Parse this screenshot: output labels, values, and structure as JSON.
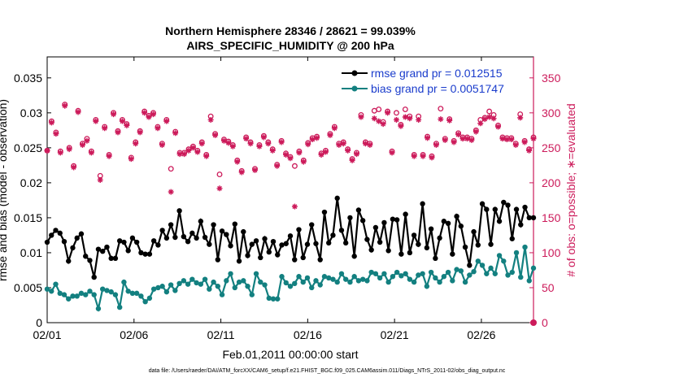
{
  "chart_data": {
    "type": "line",
    "title_line1": "Northern Hemisphere 28346 / 28621 = 99.039%",
    "title_line2": "AIRS_SPECIFIC_HUMIDITY @ 200 hPa",
    "xlabel": "Feb.01,2011 00:00:00 start",
    "ylabel_left": "rmse and bias (model - observation)",
    "ylabel_right": "# of obs: o=possible; ∗=evaluated",
    "x_ticks": [
      "02/01",
      "02/06",
      "02/11",
      "02/16",
      "02/21",
      "02/26"
    ],
    "x_tick_days": [
      0,
      5,
      10,
      15,
      20,
      25
    ],
    "xlim": [
      0,
      28
    ],
    "ylim_left": [
      0,
      0.038
    ],
    "y_ticks_left": [
      "0",
      "0.005",
      "0.01",
      "0.015",
      "0.02",
      "0.025",
      "0.03",
      "0.035"
    ],
    "y_ticks_left_values": [
      0,
      0.005,
      0.01,
      0.015,
      0.02,
      0.025,
      0.03,
      0.035
    ],
    "ylim_right": [
      0,
      380
    ],
    "y_ticks_right": [
      "0",
      "50",
      "100",
      "150",
      "200",
      "250",
      "300",
      "350"
    ],
    "y_ticks_right_values": [
      0,
      50,
      100,
      150,
      200,
      250,
      300,
      350
    ],
    "colors": {
      "rmse": "#000000",
      "bias": "#138080",
      "obs": "#cc1a5a",
      "legend_text": "#1a3ccc"
    },
    "series": [
      {
        "name": "rmse grand pr = 0.012515",
        "values": [
          0.0115,
          0.0125,
          0.0132,
          0.0128,
          0.0116,
          0.0088,
          0.0107,
          0.0121,
          0.0127,
          0.0095,
          0.0089,
          0.0065,
          0.0105,
          0.0102,
          0.0108,
          0.0092,
          0.0092,
          0.0117,
          0.0115,
          0.0103,
          0.0121,
          0.0115,
          0.01,
          0.0098,
          0.0098,
          0.0117,
          0.0111,
          0.0132,
          0.0121,
          0.014,
          0.0122,
          0.016,
          0.0123,
          0.0116,
          0.0128,
          0.0121,
          0.0145,
          0.0122,
          0.0112,
          0.014,
          0.009,
          0.0131,
          0.0126,
          0.011,
          0.0141,
          0.0088,
          0.013,
          0.0096,
          0.0112,
          0.0117,
          0.0093,
          0.012,
          0.0101,
          0.0116,
          0.0097,
          0.0111,
          0.0113,
          0.0124,
          0.009,
          0.0133,
          0.0093,
          0.0112,
          0.014,
          0.0113,
          0.009,
          0.0158,
          0.0114,
          0.0125,
          0.0178,
          0.0132,
          0.0114,
          0.015,
          0.0095,
          0.0161,
          0.0146,
          0.0119,
          0.0104,
          0.0136,
          0.0115,
          0.0143,
          0.0103,
          0.0148,
          0.0147,
          0.0098,
          0.0155,
          0.01,
          0.0125,
          0.0112,
          0.017,
          0.0107,
          0.0134,
          0.0092,
          0.0121,
          0.0145,
          0.0142,
          0.0098,
          0.0152,
          0.0138,
          0.0108,
          0.0082,
          0.013,
          0.0111,
          0.017,
          0.0162,
          0.0112,
          0.0162,
          0.0145,
          0.0172,
          0.0168,
          0.012,
          0.0162,
          0.014,
          0.0165,
          0.015,
          0.015
        ]
      },
      {
        "name": "bias grand pr = 0.0051747",
        "values": [
          0.0048,
          0.0045,
          0.0055,
          0.0042,
          0.004,
          0.0034,
          0.0038,
          0.0038,
          0.0042,
          0.004,
          0.0045,
          0.004,
          0.002,
          0.0048,
          0.0046,
          0.0044,
          0.004,
          0.0022,
          0.0058,
          0.0045,
          0.0042,
          0.0042,
          0.0038,
          0.003,
          0.0035,
          0.0048,
          0.005,
          0.0052,
          0.0044,
          0.0054,
          0.0046,
          0.0056,
          0.006,
          0.0055,
          0.0062,
          0.0057,
          0.0055,
          0.0062,
          0.0048,
          0.0058,
          0.0052,
          0.004,
          0.006,
          0.007,
          0.005,
          0.0058,
          0.006,
          0.0052,
          0.004,
          0.007,
          0.0058,
          0.0054,
          0.0035,
          0.0034,
          0.0034,
          0.0066,
          0.0057,
          0.0052,
          0.0056,
          0.0066,
          0.0058,
          0.0064,
          0.005,
          0.006,
          0.0054,
          0.0066,
          0.0064,
          0.0062,
          0.0058,
          0.007,
          0.0062,
          0.0058,
          0.0066,
          0.006,
          0.0062,
          0.006,
          0.0072,
          0.007,
          0.0064,
          0.007,
          0.0058,
          0.0066,
          0.0072,
          0.0067,
          0.007,
          0.0062,
          0.0058,
          0.0068,
          0.007,
          0.0052,
          0.0072,
          0.0064,
          0.0058,
          0.0066,
          0.0072,
          0.006,
          0.0076,
          0.0074,
          0.0058,
          0.0068,
          0.0073,
          0.0088,
          0.0082,
          0.007,
          0.0078,
          0.007,
          0.0096,
          0.0088,
          0.0068,
          0.0072,
          0.01,
          0.0065,
          0.0108,
          0.006,
          0.0078
        ]
      },
      {
        "name": "possible",
        "marker": "o",
        "values": [
          246,
          288,
          272,
          245,
          312,
          250,
          224,
          303,
          256,
          263,
          245,
          290,
          210,
          280,
          240,
          300,
          274,
          290,
          284,
          236,
          258,
          274,
          302,
          296,
          300,
          280,
          256,
          290,
          220,
          273,
          243,
          243,
          248,
          252,
          246,
          258,
          240,
          295,
          270,
          212,
          262,
          259,
          254,
          232,
          217,
          265,
          258,
          220,
          254,
          267,
          258,
          248,
          226,
          260,
          242,
          237,
          224,
          245,
          232,
          257,
          264,
          266,
          242,
          246,
          270,
          280,
          256,
          258,
          248,
          234,
          243,
          297,
          258,
          256,
          303,
          305,
          287,
          302,
          245,
          300,
          283,
          305,
          295,
          240,
          295,
          240,
          266,
          238,
          256,
          306,
          263,
          291,
          260,
          271,
          265,
          265,
          263,
          275,
          290,
          293,
          302,
          297,
          282,
          265,
          264,
          264,
          256,
          298,
          260,
          248,
          265
        ],
        "x": [
          0.0,
          0.25,
          0.5,
          0.75,
          1.0,
          1.25,
          1.5,
          1.75,
          2.0,
          2.25,
          2.5,
          2.75,
          3.0,
          3.25,
          3.5,
          3.75,
          4.0,
          4.25,
          4.5,
          4.75,
          5.0,
          5.25,
          5.5,
          5.75,
          6.0,
          6.25,
          6.5,
          6.75,
          7.0,
          7.25,
          7.5,
          7.75,
          8.0,
          8.25,
          8.5,
          8.75,
          9.0,
          9.25,
          9.5,
          9.75,
          10.0,
          10.25,
          10.5,
          10.75,
          11.0,
          11.25,
          11.5,
          11.75,
          12.0,
          12.25,
          12.5,
          12.75,
          13.0,
          13.25,
          13.5,
          13.75,
          14.0,
          14.25,
          14.5,
          14.75,
          15.0,
          15.25,
          15.5,
          15.75,
          16.0,
          16.25,
          16.5,
          16.75,
          17.0,
          17.25,
          17.5,
          17.75,
          18.0,
          18.25,
          18.5,
          18.75,
          19.0,
          19.25,
          19.5,
          19.75,
          20.0,
          20.25,
          20.5,
          20.75,
          21.0,
          21.25,
          21.5,
          21.75,
          22.0,
          22.25,
          22.5,
          22.75,
          23.0,
          23.25,
          23.5,
          23.75,
          24.0,
          24.25,
          24.5,
          24.75,
          25.0,
          25.25,
          25.5,
          25.75,
          26.0,
          26.25,
          26.5,
          26.75,
          27.0,
          27.25,
          27.5
        ]
      },
      {
        "name": "evaluated",
        "marker": "*",
        "values": [
          246,
          286,
          270,
          243,
          310,
          248,
          222,
          301,
          254,
          260,
          243,
          288,
          204,
          278,
          238,
          298,
          272,
          288,
          282,
          234,
          256,
          272,
          300,
          294,
          298,
          278,
          254,
          288,
          187,
          271,
          241,
          241,
          246,
          250,
          244,
          256,
          238,
          290,
          268,
          192,
          260,
          257,
          252,
          230,
          215,
          263,
          256,
          218,
          252,
          265,
          256,
          246,
          224,
          258,
          240,
          235,
          166,
          243,
          230,
          255,
          262,
          264,
          240,
          244,
          268,
          278,
          254,
          256,
          246,
          232,
          241,
          294,
          256,
          254,
          292,
          288,
          284,
          300,
          243,
          290,
          281,
          294,
          292,
          238,
          290,
          238,
          264,
          236,
          254,
          291,
          261,
          289,
          258,
          269,
          263,
          263,
          261,
          273,
          285,
          291,
          294,
          292,
          280,
          263,
          262,
          262,
          254,
          293,
          258,
          246,
          263
        ],
        "x": [
          0.0,
          0.25,
          0.5,
          0.75,
          1.0,
          1.25,
          1.5,
          1.75,
          2.0,
          2.25,
          2.5,
          2.75,
          3.0,
          3.25,
          3.5,
          3.75,
          4.0,
          4.25,
          4.5,
          4.75,
          5.0,
          5.25,
          5.5,
          5.75,
          6.0,
          6.25,
          6.5,
          6.75,
          7.0,
          7.25,
          7.5,
          7.75,
          8.0,
          8.25,
          8.5,
          8.75,
          9.0,
          9.25,
          9.5,
          9.75,
          10.0,
          10.25,
          10.5,
          10.75,
          11.0,
          11.25,
          11.5,
          11.75,
          12.0,
          12.25,
          12.5,
          12.75,
          13.0,
          13.25,
          13.5,
          13.75,
          14.0,
          14.25,
          14.5,
          14.75,
          15.0,
          15.25,
          15.5,
          15.75,
          16.0,
          16.25,
          16.5,
          16.75,
          17.0,
          17.25,
          17.5,
          17.75,
          18.0,
          18.25,
          18.5,
          18.75,
          19.0,
          19.25,
          19.5,
          19.75,
          20.0,
          20.25,
          20.5,
          20.75,
          21.0,
          21.25,
          21.5,
          21.75,
          22.0,
          22.25,
          22.5,
          22.75,
          23.0,
          23.25,
          23.5,
          23.75,
          24.0,
          24.25,
          24.5,
          24.75,
          25.0,
          25.25,
          25.5,
          25.75,
          26.0,
          26.25,
          26.5,
          26.75,
          27.0,
          27.25,
          27.5
        ]
      }
    ],
    "legend_position": "top-right",
    "grid": false,
    "footer": "data file: /Users/raeder/DAI/ATM_forcXX/CAM6_setup/f.e21.FHIST_BGC.f09_025.CAM6assim.011/Diags_NTrS_2011-02/obs_diag_output.nc"
  }
}
